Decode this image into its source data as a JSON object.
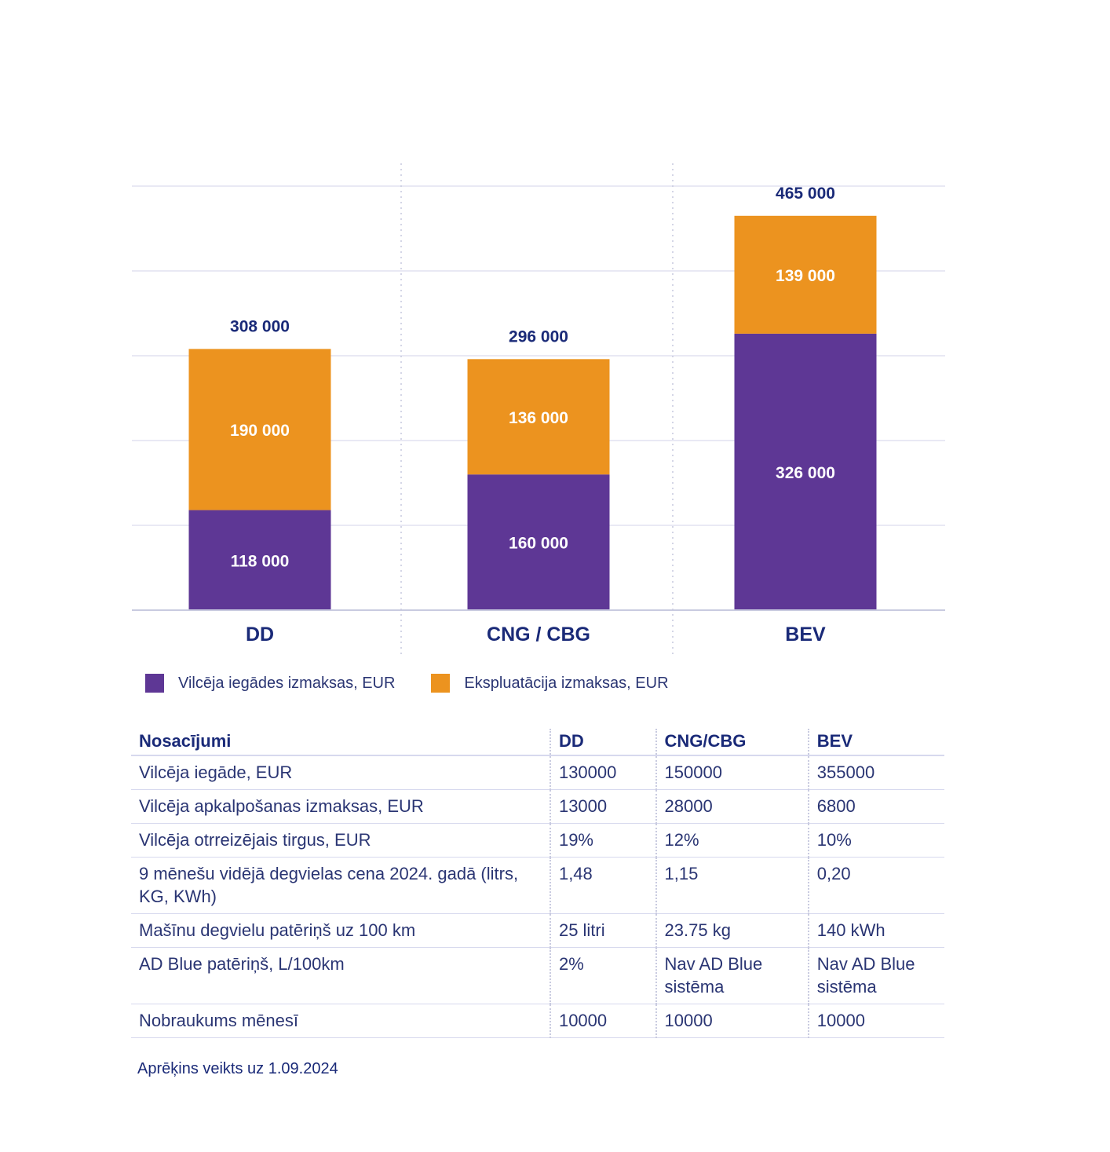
{
  "chart_data": {
    "type": "bar",
    "stacked": true,
    "categories": [
      "DD",
      "CNG / CBG",
      "BEV"
    ],
    "series": [
      {
        "name": "Vilcēja iegādes izmaksas, EUR",
        "values": [
          118000,
          160000,
          326000
        ],
        "labels": [
          "118 000",
          "160 000",
          "326 000"
        ]
      },
      {
        "name": "Ekspluatācija izmaksas, EUR",
        "values": [
          190000,
          136000,
          139000
        ],
        "labels": [
          "190 000",
          "136 000",
          "139 000"
        ]
      }
    ],
    "totals": [
      308000,
      296000,
      465000
    ],
    "total_labels": [
      "308 000",
      "296 000",
      "465 000"
    ],
    "ylim": [
      0,
      500000
    ],
    "grid": true,
    "title": "",
    "xlabel": "",
    "ylabel": ""
  },
  "colors": {
    "purchase": "#5e3795",
    "operation": "#ec931f",
    "grid": "#dcdcee",
    "total_text": "#1a2a78",
    "inner_text": "#ffffff"
  },
  "legend": [
    {
      "label": "Vilcēja iegādes izmaksas, EUR"
    },
    {
      "label": "Ekspluatācija izmaksas, EUR"
    }
  ],
  "table": {
    "headers": [
      "Nosacījumi",
      "DD",
      "CNG/CBG",
      "BEV"
    ],
    "rows": [
      [
        "Vilcēja iegāde, EUR",
        "130000",
        "150000",
        "355000"
      ],
      [
        "Vilcēja apkalpošanas izmaksas, EUR",
        "13000",
        "28000",
        "6800"
      ],
      [
        "Vilcēja otrreizējais tirgus, EUR",
        "19%",
        "12%",
        "10%"
      ],
      [
        "9 mēnešu vidējā degvielas cena 2024. gadā (litrs, KG, KWh)",
        "1,48",
        "1,15",
        "0,20"
      ],
      [
        "Mašīnu degvielu patēriņš uz 100 km",
        "25 litri",
        "23.75 kg",
        "140  kWh"
      ],
      [
        "AD Blue patēriņš, L/100km",
        "2%",
        "Nav AD Blue sistēma",
        "Nav AD Blue sistēma"
      ],
      [
        "Nobraukums mēnesī",
        "10000",
        "10000",
        "10000"
      ]
    ]
  },
  "footnote": "Aprēķins veikts uz 1.09.2024"
}
